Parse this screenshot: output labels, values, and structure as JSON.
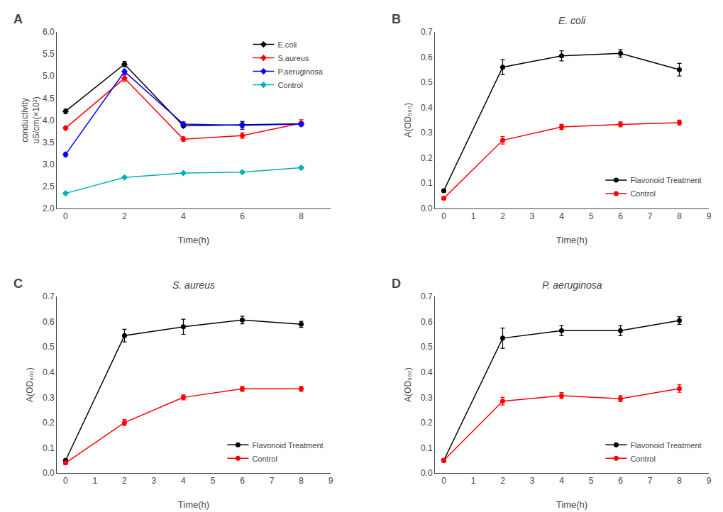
{
  "chart_data": [
    {
      "type": "line",
      "panel_label": "A",
      "xlabel": "Time(h)",
      "ylabel": "conductivity\nuS/cm(×10²)",
      "x": [
        0,
        2,
        4,
        6,
        8
      ],
      "xlim": [
        -0.3,
        9
      ],
      "xticks": [
        0,
        2,
        4,
        6,
        8
      ],
      "ylim": [
        2.0,
        6.0
      ],
      "yticks": [
        {
          "value": 2.0,
          "label": "2.0"
        },
        2.5,
        {
          "value": 3.0,
          "label": "3.0"
        },
        3.5,
        {
          "value": 4.0,
          "label": "4.0"
        },
        4.5,
        {
          "value": 5.0,
          "label": "5.0"
        },
        5.5,
        {
          "value": 6.0,
          "label": "6.0"
        }
      ],
      "grid": false,
      "legend": "upper right",
      "series": [
        {
          "name": "E.coli",
          "color": "#000000",
          "marker": "diamond",
          "values": [
            4.2,
            5.27,
            3.87,
            3.9,
            3.92
          ],
          "errors": [
            0.05,
            0.06,
            0.04,
            0.07,
            0.04
          ]
        },
        {
          "name": "S.aureus",
          "color": "#ff0000",
          "marker": "diamond",
          "values": [
            3.82,
            4.95,
            3.57,
            3.65,
            3.93
          ],
          "errors": [
            0.04,
            0.07,
            0.05,
            0.06,
            0.08
          ]
        },
        {
          "name": "P.aeruginosa",
          "color": "#0000ff",
          "marker": "diamond",
          "values": [
            3.22,
            5.1,
            3.91,
            3.88,
            3.91
          ],
          "errors": [
            0.05,
            0.06,
            0.05,
            0.09,
            0.04
          ]
        },
        {
          "name": "Control",
          "color": "#00b0b0",
          "marker": "diamond",
          "values": [
            2.34,
            2.7,
            2.8,
            2.82,
            2.92
          ],
          "errors": [
            0.02,
            0.02,
            0.02,
            0.02,
            0.03
          ]
        }
      ]
    },
    {
      "type": "line",
      "panel_label": "B",
      "title": "E. coli",
      "xlabel": "Time(h)",
      "ylabel": "A(OD₆₆₀)",
      "x": [
        0,
        2,
        4,
        6,
        8
      ],
      "xlim": [
        -0.3,
        9
      ],
      "xticks": [
        0,
        1,
        2,
        3,
        4,
        5,
        6,
        7,
        8,
        9
      ],
      "ylim": [
        0.0,
        0.7
      ],
      "yticks": [
        {
          "value": 0.0,
          "label": "0.0"
        },
        0.1,
        0.2,
        0.3,
        0.4,
        0.5,
        0.6,
        0.7
      ],
      "grid": false,
      "legend": "lower right",
      "series": [
        {
          "name": "Flavonoid Treatment",
          "color": "#000000",
          "marker": "circle",
          "values": [
            0.07,
            0.56,
            0.605,
            0.615,
            0.55
          ],
          "errors": [
            0.005,
            0.03,
            0.02,
            0.015,
            0.025
          ]
        },
        {
          "name": "Control",
          "color": "#ff0000",
          "marker": "circle",
          "values": [
            0.04,
            0.27,
            0.323,
            0.333,
            0.34
          ],
          "errors": [
            0.005,
            0.015,
            0.01,
            0.01,
            0.01
          ]
        }
      ]
    },
    {
      "type": "line",
      "panel_label": "C",
      "title": "S. aureus",
      "xlabel": "Time(h)",
      "ylabel": "A(OD₆₆₀)",
      "x": [
        0,
        2,
        4,
        6,
        8
      ],
      "xlim": [
        -0.3,
        9
      ],
      "xticks": [
        0,
        1,
        2,
        3,
        4,
        5,
        6,
        7,
        8,
        9
      ],
      "ylim": [
        0.0,
        0.7
      ],
      "yticks": [
        {
          "value": 0.0,
          "label": "0.0"
        },
        0.1,
        0.2,
        0.3,
        0.4,
        0.5,
        0.6,
        0.7
      ],
      "grid": false,
      "legend": "lower right",
      "series": [
        {
          "name": "Flavonoid Treatment",
          "color": "#000000",
          "marker": "circle",
          "values": [
            0.05,
            0.545,
            0.58,
            0.607,
            0.59
          ],
          "errors": [
            0.005,
            0.025,
            0.03,
            0.015,
            0.012
          ]
        },
        {
          "name": "Control",
          "color": "#ff0000",
          "marker": "circle",
          "values": [
            0.04,
            0.2,
            0.3,
            0.334,
            0.334
          ],
          "errors": [
            0.005,
            0.012,
            0.01,
            0.01,
            0.01
          ]
        }
      ]
    },
    {
      "type": "line",
      "panel_label": "D",
      "title": "P. aeruginosa",
      "xlabel": "Time(h)",
      "ylabel": "A(OD₆₆₀)",
      "x": [
        0,
        2,
        4,
        6,
        8
      ],
      "xlim": [
        -0.3,
        9
      ],
      "xticks": [
        0,
        1,
        2,
        3,
        4,
        5,
        6,
        7,
        8,
        9
      ],
      "ylim": [
        0.0,
        0.7
      ],
      "yticks": [
        {
          "value": 0.0,
          "label": "0.0"
        },
        0.1,
        0.2,
        0.3,
        0.4,
        0.5,
        0.6,
        0.7
      ],
      "grid": false,
      "legend": "lower right",
      "series": [
        {
          "name": "Flavonoid Treatment",
          "color": "#000000",
          "marker": "circle",
          "values": [
            0.05,
            0.535,
            0.565,
            0.565,
            0.605
          ],
          "errors": [
            0.005,
            0.04,
            0.02,
            0.02,
            0.015
          ]
        },
        {
          "name": "Control",
          "color": "#ff0000",
          "marker": "circle",
          "values": [
            0.05,
            0.285,
            0.307,
            0.295,
            0.335
          ],
          "errors": [
            0.005,
            0.015,
            0.012,
            0.012,
            0.015
          ]
        }
      ]
    }
  ]
}
